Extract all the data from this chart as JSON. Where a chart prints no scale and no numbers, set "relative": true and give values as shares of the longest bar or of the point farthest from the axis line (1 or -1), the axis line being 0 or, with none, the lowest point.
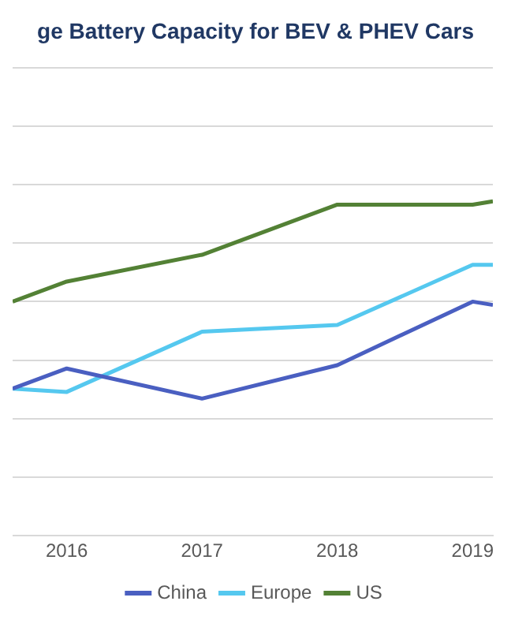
{
  "chart_data": {
    "type": "line",
    "title": "ge Battery Capacity for BEV & PHEV Cars",
    "relative": true,
    "x": [
      2015.6,
      2016,
      2017,
      2018,
      2019,
      2019.15
    ],
    "xlim": [
      2015.6,
      2019.15
    ],
    "xticks": [
      2016,
      2017,
      2018,
      2019
    ],
    "series": [
      {
        "name": "China",
        "color": "#4a5fc1",
        "values": [
          0.44,
          0.5,
          0.41,
          0.51,
          0.7,
          0.69
        ]
      },
      {
        "name": "Europe",
        "color": "#55c8ef",
        "values": [
          0.44,
          0.43,
          0.61,
          0.63,
          0.81,
          0.81
        ]
      },
      {
        "name": "US",
        "color": "#538135",
        "values": [
          0.7,
          0.76,
          0.84,
          0.99,
          0.99,
          1
        ]
      }
    ],
    "grid": "y",
    "legend": "bottom",
    "marker": "none",
    "line_style": "solid"
  }
}
